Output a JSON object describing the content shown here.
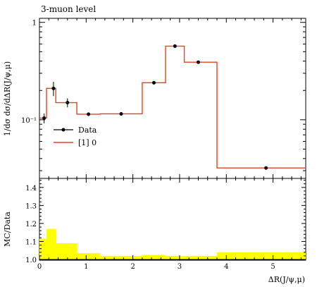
{
  "chart_data": [
    {
      "type": "line",
      "panel": "main",
      "title": "3-muon level",
      "ylabel": "1/dσ dσ/dΔR(J/ψ,μ)",
      "yscale": "log",
      "ylim": [
        0.025,
        1.1
      ],
      "xlim": [
        0,
        5.7
      ],
      "y_tick_labels": [
        "1",
        "10⁻¹"
      ],
      "legend_position": "left-middle",
      "series": [
        {
          "name": "Data",
          "style": "points-with-errors",
          "color": "#000000",
          "x": [
            0.1,
            0.3,
            0.6,
            1.05,
            1.75,
            2.45,
            2.9,
            3.4,
            4.85
          ],
          "values": [
            0.104,
            0.21,
            0.15,
            0.114,
            0.115,
            0.24,
            0.57,
            0.39,
            0.032
          ],
          "errors": [
            0.012,
            0.035,
            0.016,
            0.005,
            0.005,
            0.008,
            0.015,
            0.01,
            0.001
          ]
        },
        {
          "name": "[1] 0",
          "style": "histogram",
          "color": "#e8401f",
          "bin_edges": [
            0,
            0.15,
            0.35,
            0.8,
            1.3,
            2.2,
            2.7,
            3.1,
            3.8,
            5.7
          ],
          "values": [
            0.104,
            0.21,
            0.15,
            0.114,
            0.115,
            0.24,
            0.57,
            0.39,
            0.032
          ]
        }
      ]
    },
    {
      "type": "area",
      "panel": "ratio",
      "xlabel": "ΔR(J/ψ,μ)",
      "ylabel": "MC/Data",
      "ylim": [
        1.0,
        1.45
      ],
      "xlim": [
        0,
        5.7
      ],
      "y_ticks": [
        "1.0",
        "1.1",
        "1.2",
        "1.3",
        "1.4"
      ],
      "x_ticks": [
        "0",
        "1",
        "2",
        "3",
        "4",
        "5"
      ],
      "band_color": "#ffff00",
      "series": [
        {
          "name": "uncertainty band",
          "bin_edges": [
            0,
            0.15,
            0.35,
            0.8,
            1.3,
            2.2,
            2.7,
            3.1,
            3.8,
            5.7
          ],
          "values": [
            1.115,
            1.17,
            1.09,
            1.035,
            1.02,
            1.025,
            1.02,
            1.02,
            1.04
          ]
        }
      ]
    }
  ]
}
